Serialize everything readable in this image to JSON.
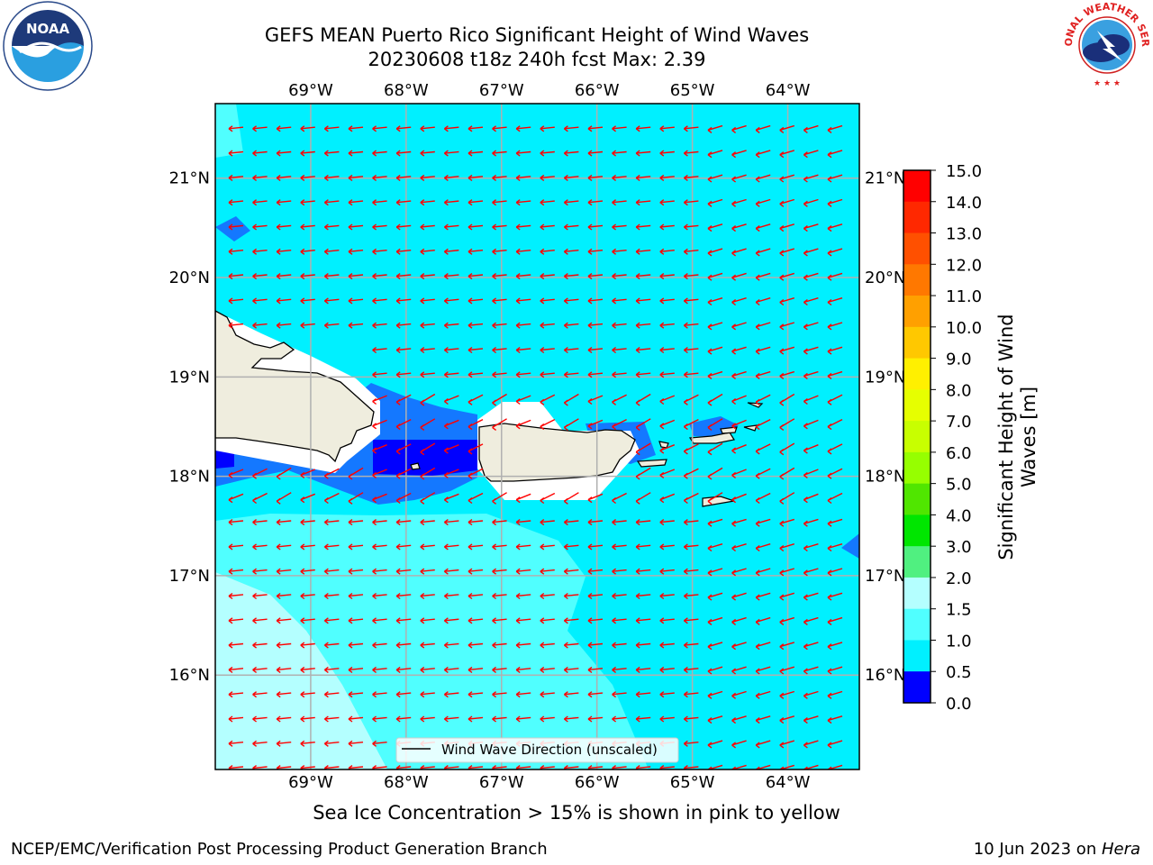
{
  "title": {
    "line1": "GEFS MEAN Puerto Rico Significant Height of Wind Waves",
    "line2": "20230608 t18z 240h fcst   Max: 2.39"
  },
  "logos": {
    "left": "NOAA",
    "right": "NATIONAL WEATHER SERVICE"
  },
  "map": {
    "projection": "plate-carree",
    "lon_range": [
      -70.0,
      -63.25
    ],
    "lat_range": [
      15.05,
      21.75
    ],
    "gridlines": true,
    "lon_ticks": [
      "69°W",
      "68°W",
      "67°W",
      "66°W",
      "65°W",
      "64°W"
    ],
    "lat_ticks": [
      "21°N",
      "20°N",
      "19°N",
      "18°N",
      "17°N",
      "16°N"
    ],
    "legend_label": "Wind Wave Direction (unscaled)",
    "arrow_color": "#ff0000",
    "land_color": "#efedde",
    "wave_direction": "toward west-southwest (easterly trade winds)"
  },
  "colorbar": {
    "label": "Significant Height of Wind Waves [m]",
    "label_line1": "Significant Height of Wind",
    "label_line2": "Waves [m]",
    "levels": [
      "15.0",
      "14.0",
      "13.0",
      "12.0",
      "11.0",
      "10.0",
      "9.0",
      "8.0",
      "7.0",
      "6.0",
      "5.0",
      "4.0",
      "3.0",
      "2.0",
      "1.5",
      "1.0",
      "0.5",
      "0.0"
    ],
    "colors": [
      "#ff0000",
      "#ff2800",
      "#ff5000",
      "#ff7800",
      "#ffa000",
      "#ffc800",
      "#fff000",
      "#e6ff00",
      "#c8ff00",
      "#96ff00",
      "#50e600",
      "#00e600",
      "#50f080",
      "#b4ffff",
      "#50ffff",
      "#00f0ff",
      "#1478ff",
      "#0000ff"
    ]
  },
  "caption": "Sea Ice Concentration > 15% is shown in pink to yellow",
  "footer": {
    "left": "NCEP/EMC/Verification Post Processing Product Generation Branch",
    "right_date": "10 Jun 2023 on ",
    "right_host": "Hera"
  }
}
